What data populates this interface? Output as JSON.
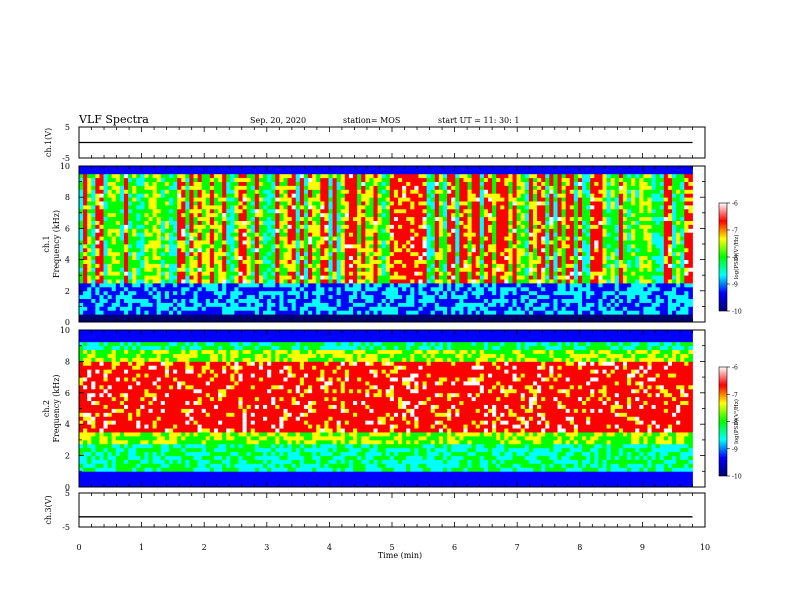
{
  "header": {
    "title": "VLF Spectra",
    "date": "Sep. 20, 2020",
    "station": "station= MOS",
    "start": "start  UT =   11: 30: 1"
  },
  "chart_data": [
    {
      "type": "line",
      "panel": "ch1-waveform",
      "ylabel": "ch.1(V)",
      "yticks": [
        "5",
        "-5"
      ],
      "ylim": [
        -5,
        5
      ],
      "x": [
        0,
        9.8
      ],
      "values": [
        0,
        0
      ]
    },
    {
      "type": "heatmap",
      "panel": "ch1-spectrogram",
      "ylabel_top": "ch.1",
      "ylabel": "Frequency (kHz)",
      "ylim": [
        0,
        10
      ],
      "xlim": [
        0,
        10
      ],
      "yticks": [
        "0",
        "2",
        "4",
        "6",
        "8",
        "10"
      ],
      "colorbar": {
        "label": "log(PSD)(V²/Hz)",
        "range": [
          -10,
          -6
        ],
        "ticks": [
          "-6",
          "-7",
          "-8",
          "-9",
          "-10"
        ]
      }
    },
    {
      "type": "heatmap",
      "panel": "ch2-spectrogram",
      "ylabel_top": "ch.2",
      "ylabel": "Frequency (kHz)",
      "ylim": [
        0,
        10
      ],
      "xlim": [
        0,
        10
      ],
      "yticks": [
        "0",
        "2",
        "4",
        "6",
        "8",
        "10"
      ],
      "colorbar": {
        "label": "log(PSD)(V²/Hz)",
        "range": [
          -10,
          -6
        ],
        "ticks": [
          "-6",
          "-7",
          "-8",
          "-9",
          "-10"
        ]
      }
    },
    {
      "type": "line",
      "panel": "ch3-waveform",
      "ylabel": "ch.3(V)",
      "yticks": [
        "5",
        "-5"
      ],
      "ylim": [
        -5,
        5
      ],
      "x": [
        0,
        9.8
      ],
      "values": [
        -2,
        -2
      ]
    }
  ],
  "xaxis": {
    "label": "Time  (min)",
    "ticks": [
      "0",
      "1",
      "2",
      "3",
      "4",
      "5",
      "6",
      "7",
      "8",
      "9",
      "10"
    ],
    "xlim": [
      0,
      10
    ]
  },
  "colors": {
    "spectrum": [
      "#000070",
      "#0000ff",
      "#00ffff",
      "#00ff00",
      "#ffff00",
      "#ff0000",
      "#ffffff"
    ]
  }
}
